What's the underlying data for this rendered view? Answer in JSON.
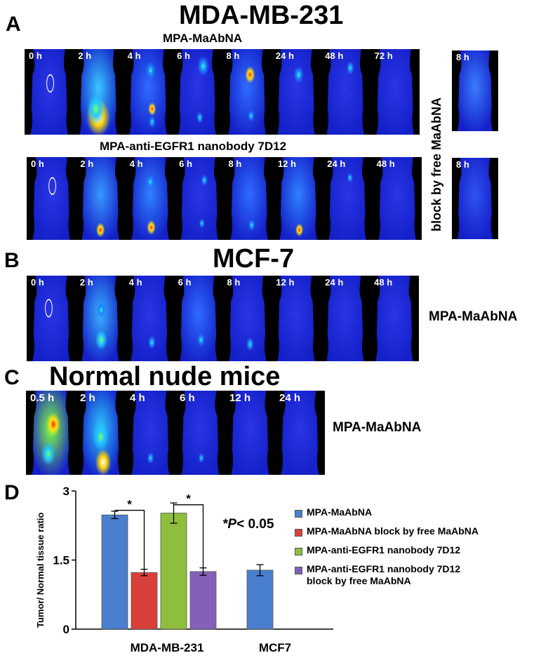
{
  "panels": {
    "A": {
      "letter": "A",
      "title": "MDA-MB-231",
      "row1": {
        "title": "MPA-MaAbNA",
        "times": [
          "0 h",
          "2 h",
          "4 h",
          "6 h",
          "8 h",
          "24 h",
          "48 h",
          "72 h"
        ],
        "block_time": "8 h"
      },
      "row2": {
        "title": "MPA-anti-EGFR1 nanobody 7D12",
        "times": [
          "0 h",
          "2 h",
          "4 h",
          "6 h",
          "8 h",
          "12 h",
          "24 h",
          "48 h"
        ],
        "block_time": "8 h"
      },
      "block_label": "block by free MaAbNA"
    },
    "B": {
      "letter": "B",
      "title": "MCF-7",
      "times": [
        "0 h",
        "2 h",
        "4 h",
        "6 h",
        "8 h",
        "12 h",
        "24 h",
        "48 h"
      ],
      "side_label": "MPA-MaAbNA"
    },
    "C": {
      "letter": "C",
      "title": "Normal nude mice",
      "times": [
        "0.5 h",
        "2 h",
        "4 h",
        "6 h",
        "12 h",
        "24 h"
      ],
      "side_label": "MPA-MaAbNA"
    },
    "D": {
      "letter": "D"
    }
  },
  "chart_data": {
    "type": "bar",
    "ylabel": "Tumor/ Normal tissue ratio",
    "ylim": [
      0,
      3
    ],
    "yticks": [
      "0",
      "1.5",
      "3"
    ],
    "categories": [
      "MDA-MB-231",
      "MCF7"
    ],
    "series": [
      {
        "name": "MPA-MaAbNA",
        "color": "#4a7fd0",
        "values": [
          2.48,
          1.28
        ],
        "errors": [
          0.08,
          0.12
        ]
      },
      {
        "name": "MPA-MaAbNA block by free MaAbNA",
        "color": "#d9403a",
        "values": [
          1.23,
          null
        ],
        "errors": [
          0.07,
          null
        ]
      },
      {
        "name": "MPA-anti-EGFR1 nanobody 7D12",
        "color": "#8fbe3f",
        "values": [
          2.52,
          null
        ],
        "errors": [
          0.22,
          null
        ]
      },
      {
        "name": "MPA-anti-EGFR1 nanobody 7D12 block by free MaAbNA",
        "color": "#8560b8",
        "values": [
          1.25,
          null
        ],
        "errors": [
          0.08,
          null
        ]
      }
    ],
    "legend_lines": [
      [
        "MPA-MaAbNA"
      ],
      [
        "MPA-MaAbNA block by free MaAbNA"
      ],
      [
        "MPA-anti-EGFR1 nanobody 7D12"
      ],
      [
        "MPA-anti-EGFR1 nanobody 7D12",
        "block by free MaAbNA"
      ]
    ],
    "significance_mark": "*",
    "annotation_prefix": "*P",
    "annotation_suffix": "< 0.05",
    "legend_position": "right"
  }
}
